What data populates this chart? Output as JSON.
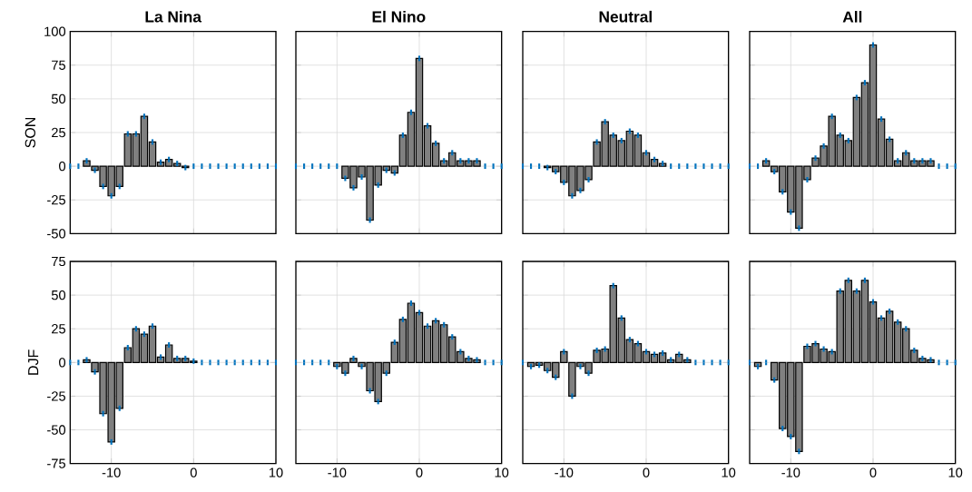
{
  "chart_data": [
    {
      "type": "bar",
      "title": "La Nina",
      "ylabel": "SON",
      "x": [
        -15,
        -14,
        -13,
        -12,
        -11,
        -10,
        -9,
        -8,
        -7,
        -6,
        -5,
        -4,
        -3,
        -2,
        -1,
        0,
        1,
        2,
        3,
        4,
        5,
        6,
        7,
        8,
        9,
        10
      ],
      "values": [
        0,
        0,
        4,
        -3,
        -15,
        -22,
        -15,
        24,
        24,
        37,
        18,
        3,
        5,
        2,
        -1,
        0,
        0,
        0,
        0,
        0,
        0,
        0,
        0,
        0,
        0,
        0
      ],
      "errors": [
        2,
        2,
        2,
        2,
        2,
        2,
        2,
        2,
        2,
        2,
        2,
        2,
        2,
        2,
        2,
        2,
        2,
        2,
        2,
        2,
        2,
        2,
        2,
        2,
        2,
        2
      ],
      "color": "#808080",
      "xlim": [
        -15,
        10
      ],
      "xticks": [
        -10,
        0,
        10
      ],
      "ylim": [
        -50,
        100
      ],
      "yticks": [
        -50,
        -25,
        0,
        25,
        50,
        75,
        100
      ],
      "grid": true,
      "tick_labels": "y"
    },
    {
      "type": "bar",
      "title": "El Nino",
      "x": [
        -15,
        -14,
        -13,
        -12,
        -11,
        -10,
        -9,
        -8,
        -7,
        -6,
        -5,
        -4,
        -3,
        -2,
        -1,
        0,
        1,
        2,
        3,
        4,
        5,
        6,
        7,
        8,
        9,
        10
      ],
      "values": [
        0,
        0,
        0,
        0,
        0,
        0,
        -9,
        -16,
        -8,
        -40,
        -14,
        -3,
        -5,
        23,
        40,
        80,
        30,
        17,
        4,
        10,
        4,
        4,
        4,
        0,
        0,
        0
      ],
      "errors": [
        2,
        2,
        2,
        2,
        2,
        2,
        2,
        2,
        2,
        2,
        2,
        2,
        2,
        2,
        2,
        2,
        2,
        2,
        2,
        2,
        2,
        2,
        2,
        2,
        2,
        2
      ],
      "color": "#808080",
      "xlim": [
        -15,
        10
      ],
      "xticks": [
        -10,
        0,
        10
      ],
      "ylim": [
        -50,
        100
      ],
      "yticks": [
        -50,
        -25,
        0,
        25,
        50,
        75,
        100
      ],
      "grid": true,
      "tick_labels": false
    },
    {
      "type": "bar",
      "title": "Neutral",
      "x": [
        -15,
        -14,
        -13,
        -12,
        -11,
        -10,
        -9,
        -8,
        -7,
        -6,
        -5,
        -4,
        -3,
        -2,
        -1,
        0,
        1,
        2,
        3,
        4,
        5,
        6,
        7,
        8,
        9,
        10
      ],
      "values": [
        0,
        0,
        0,
        -1,
        -4,
        -12,
        -22,
        -18,
        -10,
        18,
        33,
        23,
        19,
        26,
        23,
        10,
        5,
        2,
        0,
        0,
        0,
        0,
        0,
        0,
        0,
        0
      ],
      "errors": [
        2,
        2,
        2,
        2,
        2,
        2,
        2,
        2,
        2,
        2,
        2,
        2,
        2,
        2,
        2,
        2,
        2,
        2,
        2,
        2,
        2,
        2,
        2,
        2,
        2,
        2
      ],
      "color": "#808080",
      "xlim": [
        -15,
        10
      ],
      "xticks": [
        -10,
        0,
        10
      ],
      "ylim": [
        -50,
        100
      ],
      "yticks": [
        -50,
        -25,
        0,
        25,
        50,
        75,
        100
      ],
      "grid": true,
      "tick_labels": false
    },
    {
      "type": "bar",
      "title": "All",
      "x": [
        -15,
        -14,
        -13,
        -12,
        -11,
        -10,
        -9,
        -8,
        -7,
        -6,
        -5,
        -4,
        -3,
        -2,
        -1,
        0,
        1,
        2,
        3,
        4,
        5,
        6,
        7,
        8,
        9,
        10
      ],
      "values": [
        0,
        0,
        4,
        -4,
        -19,
        -34,
        -46,
        -10,
        6,
        15,
        37,
        23,
        19,
        51,
        62,
        90,
        35,
        20,
        4,
        10,
        4,
        4,
        4,
        0,
        0,
        0
      ],
      "errors": [
        2,
        2,
        2,
        2,
        2,
        2,
        2,
        2,
        2,
        2,
        2,
        2,
        2,
        2,
        2,
        2,
        2,
        2,
        2,
        2,
        2,
        2,
        2,
        2,
        2,
        2
      ],
      "color": "#808080",
      "xlim": [
        -15,
        10
      ],
      "xticks": [
        -10,
        0,
        10
      ],
      "ylim": [
        -50,
        100
      ],
      "yticks": [
        -50,
        -25,
        0,
        25,
        50,
        75,
        100
      ],
      "grid": true,
      "tick_labels": false
    },
    {
      "type": "bar",
      "ylabel": "DJF",
      "x": [
        -15,
        -14,
        -13,
        -12,
        -11,
        -10,
        -9,
        -8,
        -7,
        -6,
        -5,
        -4,
        -3,
        -2,
        -1,
        0,
        1,
        2,
        3,
        4,
        5,
        6,
        7,
        8,
        9,
        10
      ],
      "values": [
        0,
        0,
        2,
        -7,
        -38,
        -59,
        -34,
        11,
        25,
        21,
        27,
        4,
        13,
        3,
        3,
        1,
        0,
        0,
        0,
        0,
        0,
        0,
        0,
        0,
        0,
        0
      ],
      "errors": [
        2,
        2,
        2,
        2,
        2,
        2,
        2,
        2,
        2,
        2,
        2,
        2,
        2,
        2,
        2,
        2,
        2,
        2,
        2,
        2,
        2,
        2,
        2,
        2,
        2,
        2
      ],
      "color": "#808080",
      "xlim": [
        -15,
        10
      ],
      "xticks": [
        -10,
        0,
        10
      ],
      "ylim": [
        -75,
        75
      ],
      "yticks": [
        -75,
        -50,
        -25,
        0,
        25,
        50,
        75
      ],
      "grid": true
    },
    {
      "type": "bar",
      "x": [
        -15,
        -14,
        -13,
        -12,
        -11,
        -10,
        -9,
        -8,
        -7,
        -6,
        -5,
        -4,
        -3,
        -2,
        -1,
        0,
        1,
        2,
        3,
        4,
        5,
        6,
        7,
        8,
        9,
        10
      ],
      "values": [
        0,
        0,
        0,
        0,
        0,
        -3,
        -8,
        3,
        -3,
        -21,
        -29,
        -8,
        15,
        32,
        44,
        37,
        27,
        31,
        28,
        19,
        8,
        3,
        2,
        0,
        0,
        0
      ],
      "errors": [
        2,
        2,
        2,
        2,
        2,
        2,
        2,
        2,
        2,
        2,
        2,
        2,
        2,
        2,
        2,
        2,
        2,
        2,
        2,
        2,
        2,
        2,
        2,
        2,
        2,
        2
      ],
      "color": "#808080",
      "xlim": [
        -15,
        10
      ],
      "xticks": [
        -10,
        0,
        10
      ],
      "ylim": [
        -75,
        75
      ],
      "yticks": [
        -75,
        -50,
        -25,
        0,
        25,
        50,
        75
      ],
      "grid": true,
      "tick_labels": "x"
    },
    {
      "type": "bar",
      "x": [
        -15,
        -14,
        -13,
        -12,
        -11,
        -10,
        -9,
        -8,
        -7,
        -6,
        -5,
        -4,
        -3,
        -2,
        -1,
        0,
        1,
        2,
        3,
        4,
        5,
        6,
        7,
        8,
        9,
        10
      ],
      "values": [
        0,
        -3,
        -2,
        -6,
        -11,
        8,
        -25,
        -3,
        -8,
        9,
        10,
        57,
        33,
        17,
        14,
        8,
        6,
        7,
        2,
        6,
        2,
        0,
        0,
        0,
        0,
        0
      ],
      "errors": [
        2,
        2,
        2,
        2,
        2,
        2,
        2,
        2,
        2,
        2,
        2,
        2,
        2,
        2,
        2,
        2,
        2,
        2,
        2,
        2,
        2,
        2,
        2,
        2,
        2,
        2
      ],
      "color": "#808080",
      "xlim": [
        -15,
        10
      ],
      "xticks": [
        -10,
        0,
        10
      ],
      "ylim": [
        -75,
        75
      ],
      "yticks": [
        -75,
        -50,
        -25,
        0,
        25,
        50,
        75
      ],
      "grid": true,
      "tick_labels": "x"
    },
    {
      "type": "bar",
      "x": [
        -15,
        -14,
        -13,
        -12,
        -11,
        -10,
        -9,
        -8,
        -7,
        -6,
        -5,
        -4,
        -3,
        -2,
        -1,
        0,
        1,
        2,
        3,
        4,
        5,
        6,
        7,
        8,
        9,
        10
      ],
      "values": [
        0,
        -3,
        0,
        -13,
        -49,
        -55,
        -66,
        12,
        14,
        10,
        8,
        53,
        61,
        53,
        61,
        45,
        33,
        38,
        30,
        25,
        9,
        3,
        2,
        0,
        0,
        0
      ],
      "errors": [
        2,
        2,
        2,
        2,
        2,
        2,
        2,
        2,
        2,
        2,
        2,
        2,
        2,
        2,
        2,
        2,
        2,
        2,
        2,
        2,
        2,
        2,
        2,
        2,
        2,
        2
      ],
      "color": "#808080",
      "xlim": [
        -15,
        10
      ],
      "xticks": [
        -10,
        0,
        10
      ],
      "ylim": [
        -75,
        75
      ],
      "yticks": [
        -75,
        -50,
        -25,
        0,
        25,
        50,
        75
      ],
      "grid": true,
      "tick_labels": "x"
    }
  ]
}
